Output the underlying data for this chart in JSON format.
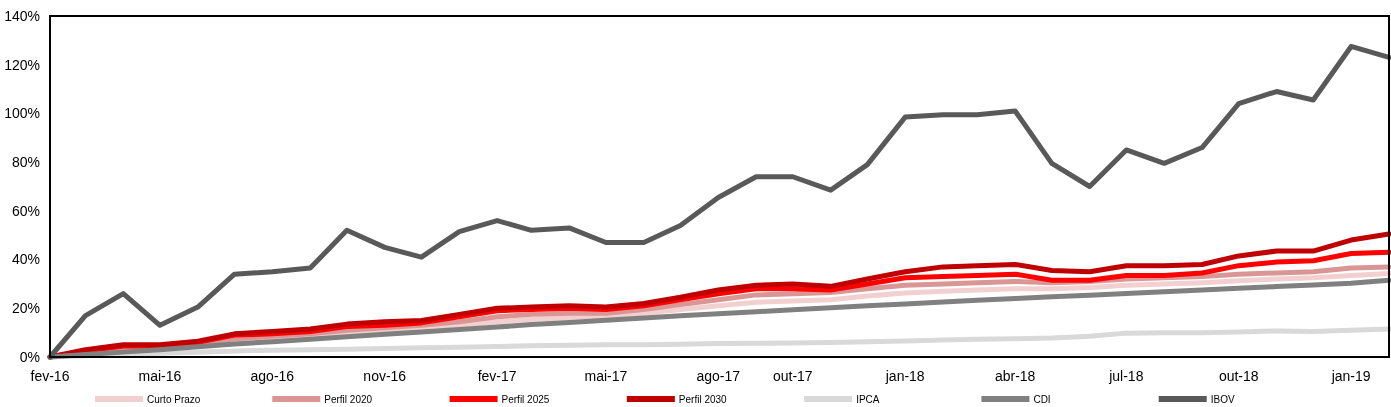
{
  "chart_data": {
    "type": "line",
    "x": [
      "2016-02",
      "2016-03",
      "2016-04",
      "2016-05",
      "2016-06",
      "2016-07",
      "2016-08",
      "2016-09",
      "2016-10",
      "2016-11",
      "2016-12",
      "2017-01",
      "2017-02",
      "2017-03",
      "2017-04",
      "2017-05",
      "2017-06",
      "2017-07",
      "2017-08",
      "2017-09",
      "2017-10",
      "2017-11",
      "2017-12",
      "2018-01",
      "2018-02",
      "2018-03",
      "2018-04",
      "2018-05",
      "2018-06",
      "2018-07",
      "2018-08",
      "2018-09",
      "2018-10",
      "2018-11",
      "2018-12",
      "2019-01",
      "2019-02"
    ],
    "series": [
      {
        "name": "Curto Prazo",
        "color": "#f2d0cf",
        "values": [
          0,
          1.5,
          2.8,
          3.5,
          4.8,
          6.5,
          7.5,
          8.5,
          9.8,
          10.8,
          11.8,
          13,
          14.5,
          15.5,
          16.2,
          16.8,
          18,
          19.5,
          21,
          22.5,
          23,
          23.5,
          25,
          26.3,
          27,
          27.5,
          28,
          28,
          28.5,
          29.5,
          30,
          30.5,
          31.3,
          32,
          32.5,
          33.5,
          34.3
        ]
      },
      {
        "name": "Perfil 2020",
        "color": "#d99694",
        "values": [
          0,
          2,
          3.5,
          4,
          5.5,
          7.5,
          8.5,
          9.5,
          11,
          12,
          13,
          14.5,
          16.5,
          17.5,
          18,
          18,
          19.5,
          21.5,
          23.5,
          25.5,
          26,
          26.5,
          28,
          29.5,
          30,
          30.5,
          31,
          30.5,
          31,
          32,
          32.5,
          33,
          34,
          34.5,
          35,
          36.5,
          37
        ]
      },
      {
        "name": "Perfil 2025",
        "color": "#ff0000",
        "values": [
          0,
          2.5,
          4.5,
          4.5,
          6,
          9,
          9.5,
          10.5,
          12.5,
          13,
          14,
          16.5,
          19,
          19.5,
          20,
          19.5,
          21,
          23.5,
          26,
          28,
          28,
          27.5,
          30,
          32.5,
          33,
          33.5,
          34,
          31.5,
          31.5,
          33.5,
          33.5,
          34.5,
          37.5,
          39,
          39.5,
          42.5,
          43
        ]
      },
      {
        "name": "Perfil 2030",
        "color": "#c00000",
        "values": [
          0,
          3,
          5,
          5,
          6.5,
          9.5,
          10.5,
          11.5,
          13.5,
          14.5,
          15,
          17.5,
          20,
          20.5,
          21,
          20.5,
          22,
          24.5,
          27.5,
          29.5,
          30,
          29,
          32,
          35,
          37,
          37.5,
          38,
          35.5,
          35,
          37.5,
          37.5,
          38,
          41.5,
          43.5,
          43.5,
          48,
          50.5
        ]
      },
      {
        "name": "IPCA",
        "color": "#d9d9d9",
        "values": [
          0,
          0.5,
          1,
          1.5,
          2,
          2.5,
          2.8,
          3,
          3.2,
          3.5,
          3.8,
          4,
          4.3,
          4.6,
          4.8,
          5,
          5,
          5.2,
          5.5,
          5.6,
          5.7,
          6,
          6.3,
          6.6,
          7,
          7.3,
          7.5,
          7.8,
          8.5,
          9.8,
          10,
          10,
          10.3,
          10.7,
          10.5,
          11,
          11.5
        ]
      },
      {
        "name": "CDI",
        "color": "#808080",
        "values": [
          0,
          1,
          2,
          3,
          4.2,
          5.3,
          6.3,
          7.3,
          8.3,
          9.3,
          10.3,
          11.3,
          12.3,
          13.3,
          14.2,
          15.1,
          16,
          16.9,
          17.8,
          18.6,
          19.4,
          20.2,
          21,
          21.8,
          22.6,
          23.3,
          24,
          24.7,
          25.4,
          26.1,
          26.8,
          27.5,
          28.2,
          28.9,
          29.6,
          30.3,
          31.5
        ]
      },
      {
        "name": "IBOV",
        "color": "#595959",
        "values": [
          0,
          17,
          26,
          13,
          20.5,
          34,
          35,
          36.5,
          52,
          45,
          41,
          51.5,
          56,
          52,
          53,
          47,
          47,
          54,
          65.5,
          74,
          74,
          68.5,
          79,
          98.5,
          99.5,
          99.5,
          101,
          79.5,
          70,
          85,
          79.5,
          86,
          104,
          109,
          105.5,
          127.5,
          123
        ]
      }
    ],
    "xlim": [
      "2016-02",
      "2019-02"
    ],
    "xticks": [
      {
        "value": "2016-02",
        "label": "fev-16"
      },
      {
        "value": "2016-05",
        "label": "mai-16"
      },
      {
        "value": "2016-08",
        "label": "ago-16"
      },
      {
        "value": "2016-11",
        "label": "nov-16"
      },
      {
        "value": "2017-02",
        "label": "fev-17"
      },
      {
        "value": "2017-05",
        "label": "mai-17"
      },
      {
        "value": "2017-08",
        "label": "ago-17"
      },
      {
        "value": "2017-10",
        "label": "out-17"
      },
      {
        "value": "2018-01",
        "label": "jan-18"
      },
      {
        "value": "2018-04",
        "label": "abr-18"
      },
      {
        "value": "2018-07",
        "label": "jul-18"
      },
      {
        "value": "2018-10",
        "label": "out-18"
      },
      {
        "value": "2019-01",
        "label": "jan-19"
      }
    ],
    "ylim": [
      0,
      140
    ],
    "yticks": [
      {
        "value": 0,
        "label": "0%"
      },
      {
        "value": 20,
        "label": "20%"
      },
      {
        "value": 40,
        "label": "40%"
      },
      {
        "value": 60,
        "label": "60%"
      },
      {
        "value": 80,
        "label": "80%"
      },
      {
        "value": 100,
        "label": "100%"
      },
      {
        "value": 120,
        "label": "120%"
      },
      {
        "value": 140,
        "label": "140%"
      }
    ],
    "legend": "bottom",
    "marker": "none",
    "line_style": "solid"
  }
}
